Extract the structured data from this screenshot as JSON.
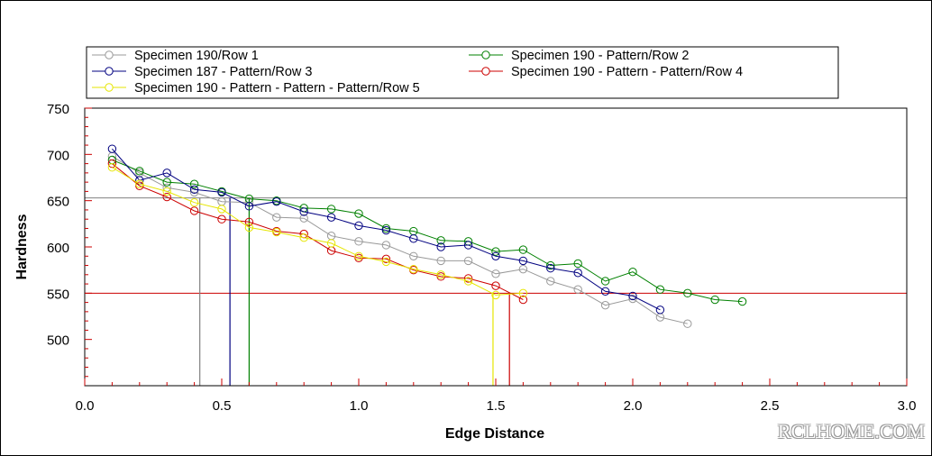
{
  "chart_data": {
    "type": "line",
    "title": "",
    "xlabel": "Edge Distance",
    "ylabel": "Hardness",
    "xlim": [
      0.0,
      3.0
    ],
    "ylim": [
      450,
      750
    ],
    "x_ticks": [
      "0.0",
      "0.5",
      "1.0",
      "1.5",
      "2.0",
      "2.5",
      "3.0"
    ],
    "y_ticks": [
      "500",
      "550",
      "600",
      "650",
      "700",
      "750"
    ],
    "grid": false,
    "legend_position": "top",
    "reference_lines": [
      {
        "axis": "y",
        "value": 653,
        "color": "#808080"
      },
      {
        "axis": "y",
        "value": 550,
        "color": "#cc0000"
      }
    ],
    "drop_lines": [
      {
        "x": 0.42,
        "color": "#808080"
      },
      {
        "x": 0.53,
        "color": "#000080"
      },
      {
        "x": 0.6,
        "color": "#008000"
      },
      {
        "x": 1.49,
        "color": "#e6e600"
      },
      {
        "x": 1.55,
        "color": "#cc0000"
      }
    ],
    "series": [
      {
        "name": "Specimen 190/Row 1",
        "color": "#999999",
        "x": [
          0.1,
          0.2,
          0.3,
          0.4,
          0.5,
          0.6,
          0.7,
          0.8,
          0.9,
          1.0,
          1.1,
          1.2,
          1.3,
          1.4,
          1.5,
          1.6,
          1.7,
          1.8,
          1.9,
          2.0,
          2.1,
          2.2
        ],
        "y": [
          698,
          680,
          664,
          659,
          649,
          648,
          632,
          631,
          612,
          606,
          602,
          590,
          585,
          585,
          571,
          576,
          563,
          554,
          537,
          544,
          524,
          517
        ]
      },
      {
        "name": "Specimen 190 - Pattern/Row 2",
        "color": "#008000",
        "x": [
          0.1,
          0.2,
          0.3,
          0.4,
          0.5,
          0.6,
          0.7,
          0.8,
          0.9,
          1.0,
          1.1,
          1.2,
          1.3,
          1.4,
          1.5,
          1.6,
          1.7,
          1.8,
          1.9,
          2.0,
          2.1,
          2.2,
          2.3,
          2.4
        ],
        "y": [
          694,
          682,
          670,
          668,
          660,
          652,
          650,
          642,
          641,
          636,
          620,
          617,
          607,
          606,
          595,
          597,
          580,
          582,
          563,
          573,
          554,
          550,
          543,
          541
        ]
      },
      {
        "name": "Specimen 187 - Pattern/Row 3",
        "color": "#000080",
        "x": [
          0.1,
          0.2,
          0.3,
          0.4,
          0.5,
          0.6,
          0.7,
          0.8,
          0.9,
          1.0,
          1.1,
          1.2,
          1.3,
          1.4,
          1.5,
          1.6,
          1.7,
          1.8,
          1.9,
          2.0,
          2.1
        ],
        "y": [
          706,
          672,
          680,
          662,
          659,
          644,
          649,
          638,
          632,
          623,
          618,
          609,
          600,
          602,
          590,
          585,
          577,
          572,
          552,
          547,
          532
        ]
      },
      {
        "name": "Specimen 190 - Pattern - Pattern/Row 4",
        "color": "#cc0000",
        "x": [
          0.1,
          0.2,
          0.3,
          0.4,
          0.5,
          0.6,
          0.7,
          0.8,
          0.9,
          1.0,
          1.1,
          1.2,
          1.3,
          1.4,
          1.5,
          1.6
        ],
        "y": [
          690,
          666,
          654,
          639,
          630,
          627,
          617,
          614,
          596,
          588,
          587,
          575,
          568,
          566,
          558,
          543
        ]
      },
      {
        "name": "Specimen 190 - Pattern - Pattern - Pattern/Row 5",
        "color": "#e6e600",
        "x": [
          0.1,
          0.2,
          0.3,
          0.4,
          0.5,
          0.6,
          0.7,
          0.8,
          0.9,
          1.0,
          1.1,
          1.2,
          1.3,
          1.4,
          1.5,
          1.6
        ],
        "y": [
          686,
          668,
          660,
          648,
          641,
          621,
          616,
          610,
          604,
          590,
          584,
          576,
          570,
          563,
          548,
          550
        ]
      }
    ]
  },
  "watermark_text": "RCLHOME.COM"
}
